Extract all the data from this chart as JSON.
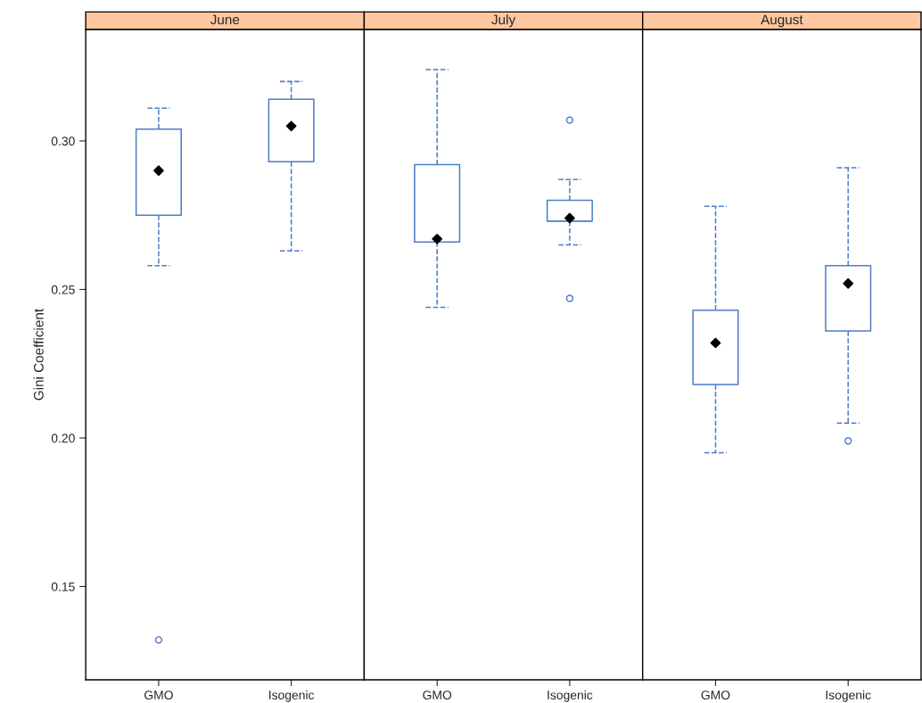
{
  "chart_data": [
    {
      "type": "box",
      "title": "June",
      "ylabel": "Gini Coefficient",
      "categories": [
        "GMO",
        "Isogenic"
      ],
      "ylim": [
        0.1186,
        0.3375
      ],
      "yticks": [
        {
          "value": 0.15,
          "label": "0.15"
        },
        {
          "value": 0.2,
          "label": "0.20"
        },
        {
          "value": 0.25,
          "label": "0.25"
        },
        {
          "value": 0.3,
          "label": "0.30"
        }
      ],
      "line_style": "dashed",
      "series": [
        {
          "color": "#4a7ec8",
          "boxes": [
            {
              "low": 0.258,
              "q1": 0.275,
              "median": 0.29,
              "q3": 0.304,
              "high": 0.311,
              "outliers": [
                0.132
              ]
            },
            {
              "low": 0.263,
              "q1": 0.293,
              "median": 0.305,
              "q3": 0.314,
              "high": 0.32
            }
          ]
        }
      ]
    },
    {
      "type": "box",
      "title": "July",
      "categories": [
        "GMO",
        "Isogenic"
      ],
      "ylim": [
        0.1186,
        0.3375
      ],
      "tick_labels": "x",
      "line_style": "dashed",
      "series": [
        {
          "color": "#4a7ec8",
          "boxes": [
            {
              "low": 0.244,
              "q1": 0.266,
              "median": 0.267,
              "q3": 0.292,
              "high": 0.324
            },
            {
              "low": 0.265,
              "q1": 0.273,
              "median": 0.274,
              "q3": 0.28,
              "high": 0.287,
              "outliers": [
                0.307,
                0.247
              ]
            }
          ]
        }
      ]
    },
    {
      "type": "box",
      "title": "August",
      "categories": [
        "GMO",
        "Isogenic"
      ],
      "ylim": [
        0.1186,
        0.3375
      ],
      "tick_labels": "x",
      "line_style": "dashed",
      "series": [
        {
          "color": "#4a7ec8",
          "boxes": [
            {
              "low": 0.195,
              "q1": 0.218,
              "median": 0.232,
              "q3": 0.243,
              "high": 0.278
            },
            {
              "low": 0.205,
              "q1": 0.236,
              "median": 0.252,
              "q3": 0.258,
              "high": 0.291,
              "outliers": [
                0.199
              ]
            }
          ]
        }
      ]
    }
  ]
}
